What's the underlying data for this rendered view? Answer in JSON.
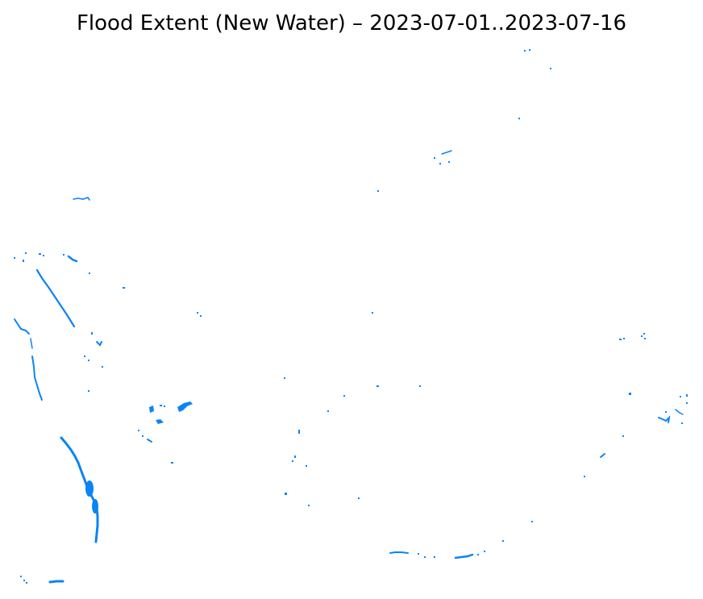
{
  "map": {
    "title": "Flood Extent (New Water) – 2023-07-01..2023-07-16",
    "colors": {
      "new_water": "#0a84f5",
      "background": "#ffffff"
    }
  }
}
